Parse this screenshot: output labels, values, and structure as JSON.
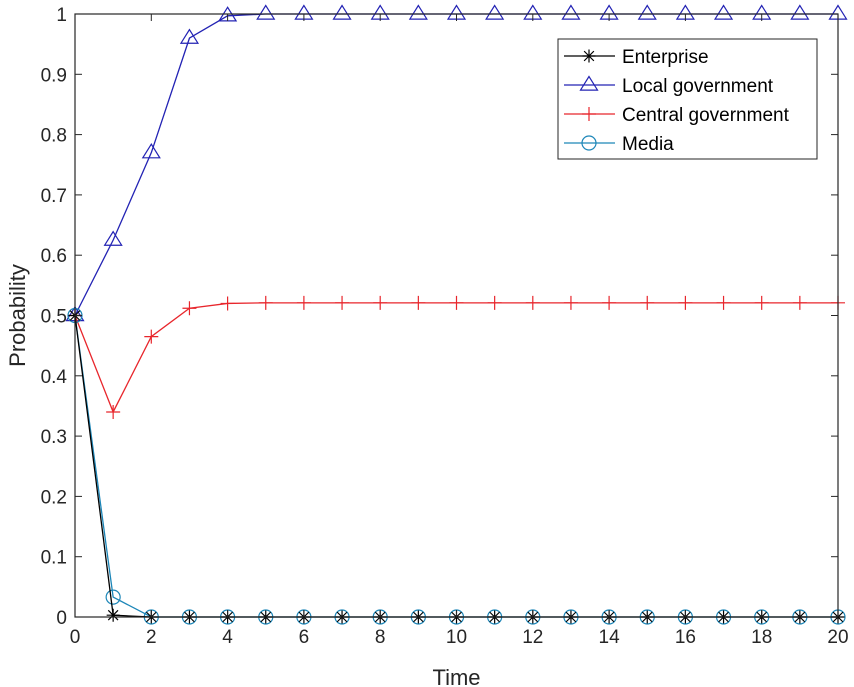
{
  "chart_data": {
    "type": "line",
    "title": "",
    "xlabel": "Time",
    "ylabel": "Probability",
    "xlim": [
      0,
      20
    ],
    "ylim": [
      0,
      1
    ],
    "xticks": [
      0,
      2,
      4,
      6,
      8,
      10,
      12,
      14,
      16,
      18,
      20
    ],
    "yticks": [
      0,
      0.1,
      0.2,
      0.3,
      0.4,
      0.5,
      0.6,
      0.7,
      0.8,
      0.9,
      1
    ],
    "ytick_labels": [
      "0",
      "0.1",
      "0.2",
      "0.3",
      "0.4",
      "0.5",
      "0.6",
      "0.7",
      "0.8",
      "0.9",
      "1"
    ],
    "grid": false,
    "legend_position": "top-right",
    "x": [
      0,
      1,
      2,
      3,
      4,
      5,
      6,
      7,
      8,
      9,
      10,
      11,
      12,
      13,
      14,
      15,
      16,
      17,
      18,
      19,
      20
    ],
    "series": [
      {
        "name": "Enterprise",
        "marker": "asterisk",
        "color": "#000000",
        "values": [
          0.5,
          0.003,
          0.0,
          0.0,
          0.0,
          0.0,
          0.0,
          0.0,
          0.0,
          0.0,
          0.0,
          0.0,
          0.0,
          0.0,
          0.0,
          0.0,
          0.0,
          0.0,
          0.0,
          0.0,
          0.0
        ]
      },
      {
        "name": "Local government",
        "marker": "triangle",
        "color": "#2323b4",
        "values": [
          0.5,
          0.625,
          0.77,
          0.96,
          0.997,
          1.0,
          1.0,
          1.0,
          1.0,
          1.0,
          1.0,
          1.0,
          1.0,
          1.0,
          1.0,
          1.0,
          1.0,
          1.0,
          1.0,
          1.0,
          1.0
        ]
      },
      {
        "name": "Central government",
        "marker": "plus",
        "color": "#e8262c",
        "values": [
          0.5,
          0.34,
          0.465,
          0.512,
          0.52,
          0.521,
          0.521,
          0.521,
          0.521,
          0.521,
          0.521,
          0.521,
          0.521,
          0.521,
          0.521,
          0.521,
          0.521,
          0.521,
          0.521,
          0.521,
          0.521
        ]
      },
      {
        "name": "Media",
        "marker": "circle",
        "color": "#1c86b8",
        "values": [
          0.5,
          0.033,
          0.0,
          0.0,
          0.0,
          0.0,
          0.0,
          0.0,
          0.0,
          0.0,
          0.0,
          0.0,
          0.0,
          0.0,
          0.0,
          0.0,
          0.0,
          0.0,
          0.0,
          0.0,
          0.0
        ]
      }
    ]
  }
}
